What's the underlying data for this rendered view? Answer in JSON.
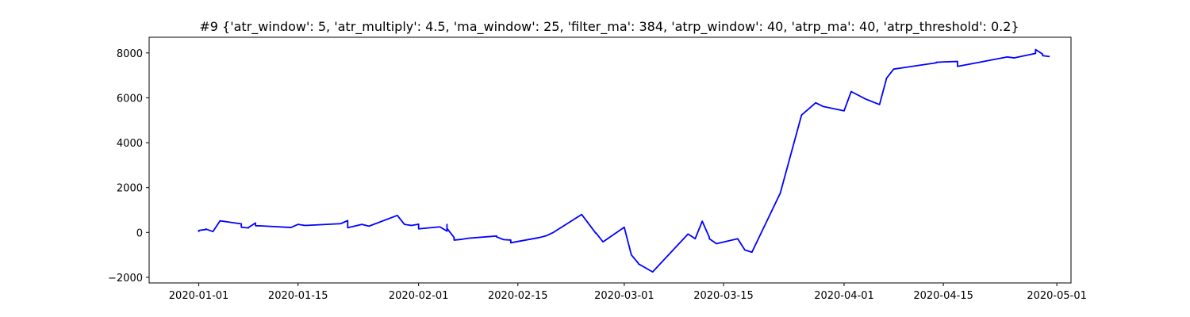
{
  "chart_data": {
    "type": "line",
    "title": "#9 {'atr_window': 5, 'atr_multiply': 4.5, 'ma_window': 25, 'filter_ma': 384, 'atrp_window': 40, 'atrp_ma': 40, 'atrp_threshold': 0.2}",
    "xlabel": "",
    "ylabel": "",
    "x_axis": "date",
    "xlim": [
      "2019-12-25",
      "2020-05-03"
    ],
    "ylim": [
      -2250,
      8700
    ],
    "xticks": [
      "2020-01-01",
      "2020-01-15",
      "2020-02-01",
      "2020-02-15",
      "2020-03-01",
      "2020-03-15",
      "2020-04-01",
      "2020-04-15",
      "2020-05-01"
    ],
    "yticks": [
      -2000,
      0,
      2000,
      4000,
      6000,
      8000
    ],
    "ytick_labels": [
      "−2000",
      "0",
      "2000",
      "4000",
      "6000",
      "8000"
    ],
    "grid": false,
    "line_color": "#0000ff",
    "series": [
      {
        "x": [
          "2020-01-01",
          "2020-01-01",
          "2020-01-02",
          "2020-01-02",
          "2020-01-02",
          "2020-01-03",
          "2020-01-04",
          "2020-01-07",
          "2020-01-07",
          "2020-01-08",
          "2020-01-08",
          "2020-01-09",
          "2020-01-09",
          "2020-01-10",
          "2020-01-14",
          "2020-01-15",
          "2020-01-16",
          "2020-01-21",
          "2020-01-22",
          "2020-01-22",
          "2020-01-24",
          "2020-01-25",
          "2020-01-29",
          "2020-01-30",
          "2020-01-31",
          "2020-02-01",
          "2020-02-01",
          "2020-02-04",
          "2020-02-05",
          "2020-02-05",
          "2020-02-05",
          "2020-02-06",
          "2020-02-06",
          "2020-02-07",
          "2020-02-08",
          "2020-02-12",
          "2020-02-12",
          "2020-02-13",
          "2020-02-14",
          "2020-02-14",
          "2020-02-18",
          "2020-02-19",
          "2020-02-20",
          "2020-02-24",
          "2020-02-25",
          "2020-02-26",
          "2020-02-26",
          "2020-02-27",
          "2020-03-01",
          "2020-03-02",
          "2020-03-03",
          "2020-03-03",
          "2020-03-04",
          "2020-03-05",
          "2020-03-10",
          "2020-03-11",
          "2020-03-12",
          "2020-03-13",
          "2020-03-13",
          "2020-03-14",
          "2020-03-17",
          "2020-03-18",
          "2020-03-19",
          "2020-03-23",
          "2020-03-26",
          "2020-03-28",
          "2020-03-29",
          "2020-04-01",
          "2020-04-02",
          "2020-04-04",
          "2020-04-06",
          "2020-04-07",
          "2020-04-08",
          "2020-04-14",
          "2020-04-14",
          "2020-04-15",
          "2020-04-17",
          "2020-04-17",
          "2020-04-20",
          "2020-04-21",
          "2020-04-24",
          "2020-04-25",
          "2020-04-28",
          "2020-04-28",
          "2020-04-29",
          "2020-04-29",
          "2020-04-30"
        ],
        "values": [
          20,
          90,
          130,
          160,
          150,
          40,
          520,
          380,
          230,
          200,
          220,
          420,
          300,
          290,
          220,
          360,
          310,
          390,
          530,
          210,
          360,
          280,
          760,
          360,
          310,
          370,
          160,
          250,
          60,
          360,
          180,
          -220,
          -340,
          -310,
          -260,
          -160,
          -200,
          -320,
          -340,
          -460,
          -230,
          -150,
          0,
          800,
          380,
          -40,
          -20,
          -420,
          230,
          -1000,
          -1380,
          -1400,
          -1580,
          -1760,
          -70,
          -280,
          500,
          -220,
          -280,
          -500,
          -280,
          -780,
          -880,
          1750,
          5230,
          5780,
          5620,
          5420,
          6280,
          5950,
          5700,
          6880,
          7280,
          7560,
          7580,
          7600,
          7620,
          7400,
          7580,
          7640,
          7820,
          7780,
          7980,
          8150,
          7950,
          7880,
          7840
        ]
      }
    ]
  }
}
